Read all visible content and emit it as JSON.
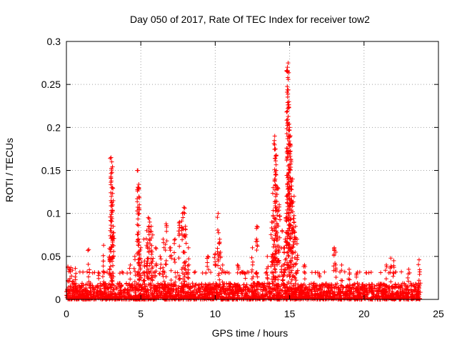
{
  "chart_data": {
    "type": "scatter",
    "title": "Day 050 of 2017, Rate Of TEC Index for receiver tow2",
    "xlabel": "GPS time / hours",
    "ylabel": "ROTI / TECUs",
    "xlim": [
      0,
      25
    ],
    "ylim": [
      0,
      0.3
    ],
    "x_ticks": [
      "0",
      "5",
      "10",
      "15",
      "20",
      "25"
    ],
    "y_ticks": [
      "0",
      "0.05",
      "0.1",
      "0.15",
      "0.2",
      "0.25",
      "0.3"
    ],
    "grid": true,
    "legend": "none",
    "marker": "plus",
    "marker_color": "#ff0000",
    "background_band": {
      "x_range": [
        0,
        23.8
      ],
      "y_typical": [
        0,
        0.02
      ]
    },
    "series": [
      {
        "x": [
          0.1,
          0.2,
          0.3,
          0.4,
          0.6,
          1.5,
          2.2,
          2.5,
          2.9,
          2.95,
          3.0,
          3.05,
          3.1,
          3.15,
          4.3,
          4.6,
          4.8,
          4.85,
          4.9,
          5.0,
          5.2,
          5.4,
          5.5,
          5.6,
          5.7,
          5.8,
          6.0,
          6.3,
          6.5,
          6.7,
          7.0,
          7.3,
          7.6,
          7.8,
          7.9,
          8.0,
          8.2,
          9.5,
          10.0,
          10.2,
          10.3,
          10.5,
          11.5,
          12.0,
          12.5,
          12.8,
          13.5,
          13.8,
          13.9,
          14.0,
          14.05,
          14.1,
          14.2,
          14.3,
          14.5,
          14.6,
          14.7,
          14.8,
          14.85,
          14.9,
          14.95,
          15.0,
          15.05,
          15.1,
          15.2,
          15.3,
          15.4,
          15.5,
          16.0,
          17.0,
          18.0,
          18.1,
          18.5,
          19.0,
          19.5,
          21.5,
          21.8,
          22.0,
          23.0,
          23.7
        ],
        "y": [
          0.038,
          0.035,
          0.037,
          0.034,
          0.036,
          0.058,
          0.03,
          0.063,
          0.05,
          0.08,
          0.165,
          0.16,
          0.13,
          0.085,
          0.04,
          0.05,
          0.15,
          0.13,
          0.11,
          0.06,
          0.07,
          0.08,
          0.095,
          0.09,
          0.085,
          0.075,
          0.06,
          0.05,
          0.07,
          0.088,
          0.06,
          0.07,
          0.09,
          0.1,
          0.107,
          0.085,
          0.06,
          0.05,
          0.053,
          0.1,
          0.07,
          0.04,
          0.04,
          0.03,
          0.06,
          0.085,
          0.05,
          0.09,
          0.13,
          0.19,
          0.175,
          0.15,
          0.13,
          0.11,
          0.08,
          0.06,
          0.07,
          0.12,
          0.27,
          0.275,
          0.23,
          0.2,
          0.18,
          0.16,
          0.14,
          0.12,
          0.085,
          0.07,
          0.04,
          0.03,
          0.06,
          0.055,
          0.04,
          0.035,
          0.03,
          0.04,
          0.048,
          0.045,
          0.035,
          0.046
        ]
      }
    ]
  }
}
